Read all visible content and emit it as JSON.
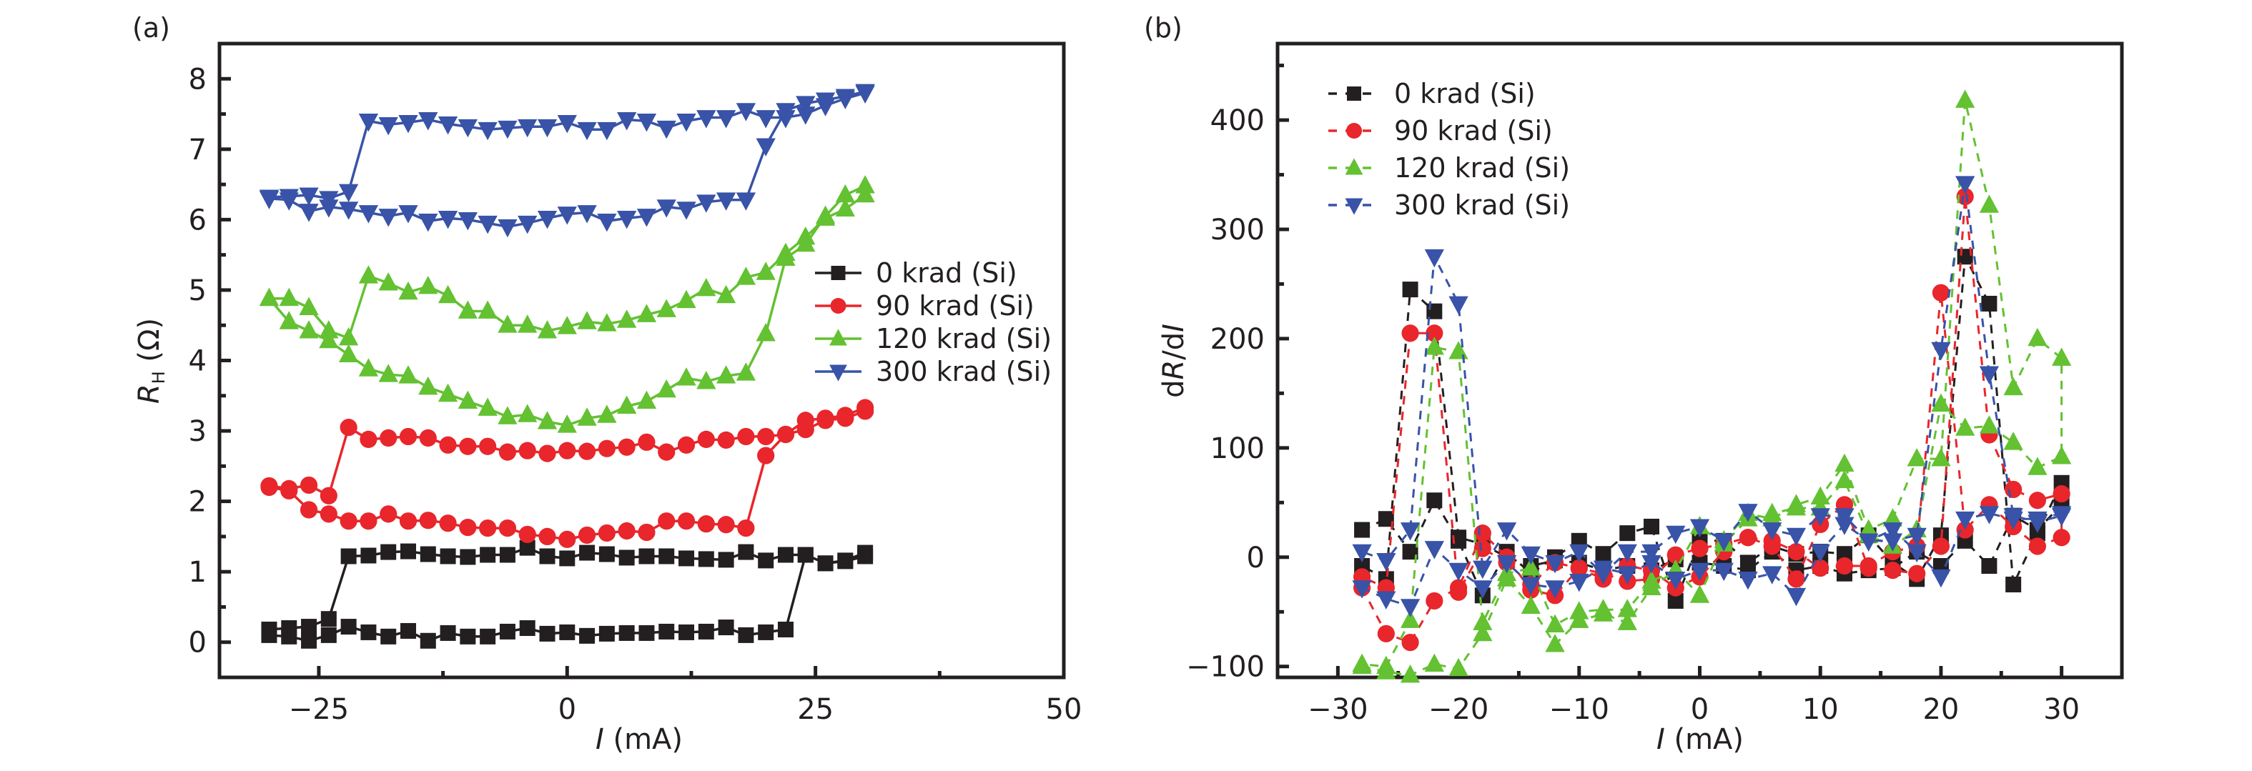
{
  "colors": {
    "0 krad (Si)": "#231f20",
    "90 krad (Si)": "#e8262b",
    "120 krad (Si)": "#63c132",
    "300 krad (Si)": "#3853a7"
  },
  "chart_data": [
    {
      "panel_label": "(a)",
      "type": "line",
      "title": "",
      "xlabel_italic": "I",
      "xlabel_unit": " (mA)",
      "ylabel_italic": "R",
      "ylabel_sub": "H",
      "ylabel_unit": " (Ω)",
      "xlim": [
        -35,
        50
      ],
      "ylim": [
        -0.5,
        8.5
      ],
      "xticks": [
        -25,
        0,
        25,
        50
      ],
      "xtick_labels": [
        "−25",
        "0",
        "25",
        "50"
      ],
      "xminor": [
        -12.5,
        12.5,
        37.5
      ],
      "yticks": [
        0,
        1,
        2,
        3,
        4,
        5,
        6,
        7,
        8
      ],
      "ytick_labels": [
        "0",
        "1",
        "2",
        "3",
        "4",
        "5",
        "6",
        "7",
        "8"
      ],
      "yminor": [
        0.5,
        1.5,
        2.5,
        3.5,
        4.5,
        5.5,
        6.5,
        7.5
      ],
      "grid": false,
      "legend_position": "center-right",
      "line_style": "solid",
      "series": [
        {
          "name": "0 krad (Si)",
          "marker": "square",
          "x": [
            -30,
            -28,
            -26,
            -24,
            -22,
            -20,
            -18,
            -16,
            -14,
            -12,
            -10,
            -8,
            -6,
            -4,
            -2,
            0,
            2,
            4,
            6,
            8,
            10,
            12,
            14,
            16,
            18,
            20,
            22,
            24,
            26,
            28,
            30,
            30,
            28,
            26,
            24,
            22,
            20,
            18,
            16,
            14,
            12,
            10,
            8,
            6,
            4,
            2,
            0,
            -2,
            -4,
            -6,
            -8,
            -10,
            -12,
            -14,
            -16,
            -18,
            -20,
            -22,
            -24,
            -26,
            -28,
            -30
          ],
          "y": [
            0.1,
            0.08,
            0.02,
            0.1,
            0.22,
            0.14,
            0.08,
            0.16,
            0.02,
            0.13,
            0.08,
            0.08,
            0.15,
            0.2,
            0.12,
            0.14,
            0.09,
            0.12,
            0.13,
            0.13,
            0.15,
            0.14,
            0.15,
            0.21,
            0.1,
            0.14,
            0.18,
            1.24,
            1.12,
            1.15,
            1.22,
            1.27,
            1.16,
            1.12,
            1.24,
            1.24,
            1.16,
            1.28,
            1.17,
            1.18,
            1.19,
            1.22,
            1.22,
            1.2,
            1.25,
            1.27,
            1.19,
            1.22,
            1.34,
            1.24,
            1.24,
            1.21,
            1.22,
            1.25,
            1.29,
            1.28,
            1.23,
            1.22,
            0.33,
            0.22,
            0.2,
            0.18
          ]
        },
        {
          "name": "90 krad (Si)",
          "marker": "circle",
          "x": [
            -30,
            -28,
            -26,
            -24,
            -22,
            -20,
            -18,
            -16,
            -14,
            -12,
            -10,
            -8,
            -6,
            -4,
            -2,
            0,
            2,
            4,
            6,
            8,
            10,
            12,
            14,
            16,
            18,
            20,
            22,
            24,
            26,
            28,
            30,
            30,
            28,
            26,
            24,
            22,
            20,
            18,
            16,
            14,
            12,
            10,
            8,
            6,
            4,
            2,
            0,
            -2,
            -4,
            -6,
            -8,
            -10,
            -12,
            -14,
            -16,
            -18,
            -20,
            -22,
            -24,
            -26,
            -28,
            -30
          ],
          "y": [
            2.2,
            2.15,
            1.88,
            1.82,
            1.72,
            1.72,
            1.82,
            1.72,
            1.73,
            1.69,
            1.63,
            1.62,
            1.62,
            1.53,
            1.5,
            1.46,
            1.52,
            1.55,
            1.58,
            1.56,
            1.72,
            1.72,
            1.68,
            1.67,
            1.62,
            2.65,
            2.95,
            3.15,
            3.18,
            3.22,
            3.33,
            3.28,
            3.18,
            3.15,
            3.02,
            2.95,
            2.92,
            2.92,
            2.87,
            2.88,
            2.8,
            2.7,
            2.84,
            2.77,
            2.75,
            2.71,
            2.72,
            2.68,
            2.72,
            2.7,
            2.78,
            2.78,
            2.8,
            2.9,
            2.92,
            2.9,
            2.88,
            3.05,
            2.08,
            2.23,
            2.18,
            2.22
          ]
        },
        {
          "name": "120 krad (Si)",
          "marker": "triangle-up",
          "x": [
            -30,
            -28,
            -26,
            -24,
            -22,
            -20,
            -18,
            -16,
            -14,
            -12,
            -10,
            -8,
            -6,
            -4,
            -2,
            0,
            2,
            4,
            6,
            8,
            10,
            12,
            14,
            16,
            18,
            20,
            22,
            24,
            26,
            28,
            30,
            30,
            28,
            26,
            24,
            22,
            20,
            18,
            16,
            14,
            12,
            10,
            8,
            6,
            4,
            2,
            0,
            -2,
            -4,
            -6,
            -8,
            -10,
            -12,
            -14,
            -16,
            -18,
            -20,
            -22,
            -24,
            -26,
            -28,
            -30
          ],
          "y": [
            4.88,
            4.55,
            4.42,
            4.28,
            4.08,
            3.88,
            3.8,
            3.78,
            3.62,
            3.52,
            3.42,
            3.32,
            3.2,
            3.23,
            3.13,
            3.08,
            3.18,
            3.22,
            3.35,
            3.42,
            3.58,
            3.75,
            3.7,
            3.78,
            3.82,
            4.38,
            5.45,
            5.65,
            6.05,
            6.35,
            6.48,
            6.35,
            6.15,
            6.02,
            5.75,
            5.52,
            5.25,
            5.18,
            4.92,
            5.02,
            4.85,
            4.72,
            4.65,
            4.57,
            4.52,
            4.55,
            4.48,
            4.42,
            4.5,
            4.5,
            4.7,
            4.7,
            4.92,
            5.05,
            4.97,
            5.1,
            5.2,
            4.32,
            4.42,
            4.75,
            4.88,
            4.88
          ]
        },
        {
          "name": "300 krad (Si)",
          "marker": "triangle-down",
          "x": [
            -30,
            -28,
            -26,
            -24,
            -22,
            -20,
            -18,
            -16,
            -14,
            -12,
            -10,
            -8,
            -6,
            -4,
            -2,
            0,
            2,
            4,
            6,
            8,
            10,
            12,
            14,
            16,
            18,
            20,
            22,
            24,
            26,
            28,
            30,
            30,
            28,
            26,
            24,
            22,
            20,
            18,
            16,
            14,
            12,
            10,
            8,
            6,
            4,
            2,
            0,
            -2,
            -4,
            -6,
            -8,
            -10,
            -12,
            -14,
            -16,
            -18,
            -20,
            -22,
            -24,
            -26,
            -28,
            -30
          ],
          "y": [
            6.3,
            6.28,
            6.12,
            6.18,
            6.15,
            6.1,
            6.05,
            6.1,
            5.98,
            6.02,
            6.0,
            5.95,
            5.9,
            5.95,
            6.02,
            6.08,
            6.1,
            5.98,
            6.02,
            6.05,
            6.18,
            6.15,
            6.25,
            6.28,
            6.28,
            7.05,
            7.55,
            7.65,
            7.7,
            7.75,
            7.82,
            7.8,
            7.72,
            7.62,
            7.5,
            7.45,
            7.45,
            7.55,
            7.45,
            7.45,
            7.4,
            7.3,
            7.4,
            7.42,
            7.28,
            7.28,
            7.38,
            7.32,
            7.32,
            7.3,
            7.28,
            7.32,
            7.36,
            7.42,
            7.38,
            7.35,
            7.4,
            6.4,
            6.3,
            6.35,
            6.33,
            6.32
          ]
        }
      ]
    },
    {
      "panel_label": "(b)",
      "type": "line",
      "title": "",
      "xlabel_italic": "I",
      "xlabel_unit": " (mA)",
      "ylabel_prefix": "d",
      "ylabel_italic1": "R",
      "ylabel_mid": "/d",
      "ylabel_italic2": "I",
      "xlim": [
        -35,
        35
      ],
      "ylim": [
        -110,
        470
      ],
      "xticks": [
        -30,
        -20,
        -10,
        0,
        10,
        20,
        30
      ],
      "xtick_labels": [
        "−30",
        "−20",
        "−10",
        "0",
        "10",
        "20",
        "30"
      ],
      "xminor": [
        -25,
        -15,
        -5,
        5,
        15,
        25
      ],
      "yticks": [
        -100,
        0,
        100,
        200,
        300,
        400
      ],
      "ytick_labels": [
        "−100",
        "0",
        "100",
        "200",
        "300",
        "400"
      ],
      "yminor": [
        -50,
        50,
        150,
        250,
        350,
        450
      ],
      "grid": false,
      "legend_position": "top-left",
      "line_style": "dashed",
      "series": [
        {
          "name": "0 krad (Si)",
          "marker": "square",
          "x": [
            -28,
            -26,
            -24,
            -22,
            -20,
            -18,
            -16,
            -14,
            -12,
            -10,
            -8,
            -6,
            -4,
            -2,
            0,
            2,
            4,
            6,
            8,
            10,
            12,
            14,
            16,
            18,
            20,
            22,
            24,
            26,
            28,
            30,
            30,
            28,
            26,
            24,
            22,
            20,
            18,
            16,
            14,
            12,
            10,
            8,
            6,
            4,
            2,
            0,
            -2,
            -4,
            -6,
            -8,
            -10,
            -12,
            -14,
            -16,
            -18,
            -20,
            -22,
            -24,
            -26,
            -28
          ],
          "y": [
            25,
            35,
            5,
            52,
            15,
            -35,
            5,
            -15,
            0,
            15,
            3,
            22,
            28,
            -40,
            15,
            15,
            -5,
            10,
            3,
            5,
            3,
            20,
            -5,
            -20,
            20,
            275,
            232,
            -25,
            22,
            68,
            48,
            25,
            38,
            -8,
            15,
            -8,
            5,
            -10,
            -12,
            -15,
            -8,
            -12,
            5,
            -12,
            -8,
            -5,
            -2,
            -12,
            -8,
            -12,
            -5,
            -3,
            -8,
            0,
            12,
            18,
            225,
            245,
            -20,
            -8
          ]
        },
        {
          "name": "90 krad (Si)",
          "marker": "circle",
          "x": [
            -28,
            -26,
            -24,
            -22,
            -20,
            -18,
            -16,
            -14,
            -12,
            -10,
            -8,
            -6,
            -4,
            -2,
            0,
            2,
            4,
            6,
            8,
            10,
            12,
            14,
            16,
            18,
            20,
            22,
            24,
            26,
            28,
            30,
            30,
            28,
            26,
            24,
            22,
            20,
            18,
            16,
            14,
            12,
            10,
            8,
            6,
            4,
            2,
            0,
            -2,
            -4,
            -6,
            -8,
            -10,
            -12,
            -14,
            -16,
            -18,
            -20,
            -22,
            -24,
            -26,
            -28
          ],
          "y": [
            -28,
            -70,
            -78,
            -40,
            -28,
            22,
            0,
            -30,
            -35,
            -10,
            -20,
            -8,
            -12,
            -28,
            -18,
            5,
            18,
            10,
            -20,
            30,
            48,
            -10,
            -12,
            -15,
            10,
            330,
            112,
            62,
            52,
            58,
            18,
            10,
            28,
            48,
            25,
            242,
            10,
            5,
            -8,
            -8,
            -10,
            5,
            15,
            18,
            12,
            8,
            2,
            -20,
            -22,
            -15,
            -10,
            -5,
            -25,
            -5,
            8,
            -32,
            205,
            205,
            -28,
            -18
          ]
        },
        {
          "name": "120 krad (Si)",
          "marker": "triangle-up",
          "x": [
            -28,
            -26,
            -24,
            -22,
            -20,
            -18,
            -16,
            -14,
            -12,
            -10,
            -8,
            -6,
            -4,
            -2,
            0,
            2,
            4,
            6,
            8,
            10,
            12,
            14,
            16,
            18,
            20,
            22,
            24,
            26,
            28,
            30,
            30,
            28,
            26,
            24,
            22,
            20,
            18,
            16,
            14,
            12,
            10,
            8,
            6,
            4,
            2,
            0,
            -2,
            -4,
            -6,
            -8,
            -10,
            -12,
            -14,
            -16,
            -18,
            -20,
            -22,
            -24,
            -26,
            -28
          ],
          "y": [
            -100,
            -105,
            -108,
            -98,
            -102,
            -70,
            -20,
            -45,
            -80,
            -58,
            -52,
            -60,
            -28,
            -12,
            -35,
            15,
            40,
            35,
            48,
            55,
            85,
            25,
            35,
            90,
            90,
            418,
            322,
            155,
            200,
            182,
            92,
            82,
            105,
            120,
            118,
            140,
            25,
            10,
            20,
            70,
            45,
            45,
            40,
            35,
            12,
            28,
            -12,
            -22,
            -48,
            -48,
            -50,
            -62,
            -10,
            -15,
            -60,
            188,
            192,
            -58,
            -100,
            -98
          ]
        },
        {
          "name": "300 krad (Si)",
          "marker": "triangle-down",
          "x": [
            -28,
            -26,
            -24,
            -22,
            -20,
            -18,
            -16,
            -14,
            -12,
            -10,
            -8,
            -6,
            -4,
            -2,
            0,
            2,
            4,
            6,
            8,
            10,
            12,
            14,
            16,
            18,
            20,
            22,
            24,
            26,
            28,
            30,
            30,
            28,
            26,
            24,
            22,
            20,
            18,
            16,
            14,
            12,
            10,
            8,
            6,
            4,
            2,
            0,
            -2,
            -4,
            -6,
            -8,
            -10,
            -12,
            -14,
            -16,
            -18,
            -20,
            -22,
            -24,
            -26,
            -28
          ],
          "y": [
            -28,
            -38,
            -45,
            8,
            -12,
            -28,
            -5,
            -25,
            -28,
            -22,
            -10,
            -15,
            -5,
            -20,
            -12,
            -12,
            -20,
            -15,
            -35,
            5,
            30,
            15,
            25,
            5,
            -18,
            35,
            40,
            35,
            35,
            40,
            38,
            32,
            38,
            168,
            342,
            190,
            20,
            15,
            15,
            38,
            38,
            20,
            25,
            42,
            15,
            28,
            22,
            5,
            5,
            -15,
            5,
            -5,
            3,
            25,
            -10,
            232,
            275,
            25,
            -3,
            5
          ]
        }
      ]
    }
  ]
}
